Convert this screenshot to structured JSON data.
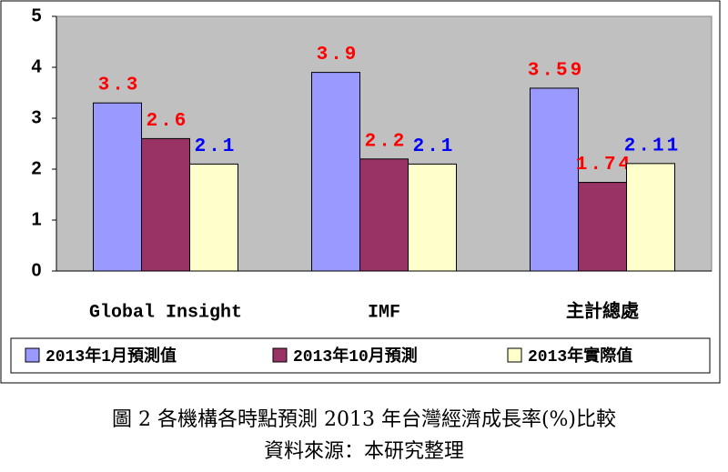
{
  "chart_data": {
    "type": "bar",
    "title": "圖 2 各機構各時點預測 2013 年台灣經濟成長率(%)比較",
    "source": "資料來源：本研究整理",
    "categories": [
      "Global Insight",
      "IMF",
      "主計總處"
    ],
    "series": [
      {
        "name": "2013年1月預測值",
        "color": "#9999ff",
        "label_color": "#ff0000",
        "values": [
          3.3,
          3.9,
          3.59
        ]
      },
      {
        "name": "2013年10月預測",
        "color": "#993366",
        "label_color": "#ff0000",
        "values": [
          2.6,
          2.2,
          1.74
        ]
      },
      {
        "name": "2013年實際值",
        "color": "#ffffcc",
        "label_color": "#0000ff",
        "values": [
          2.1,
          2.1,
          2.11
        ]
      }
    ],
    "ylim": [
      0,
      5
    ],
    "yticks": [
      0,
      1,
      2,
      3,
      4,
      5
    ],
    "plot_background": "#c0c0c0"
  }
}
